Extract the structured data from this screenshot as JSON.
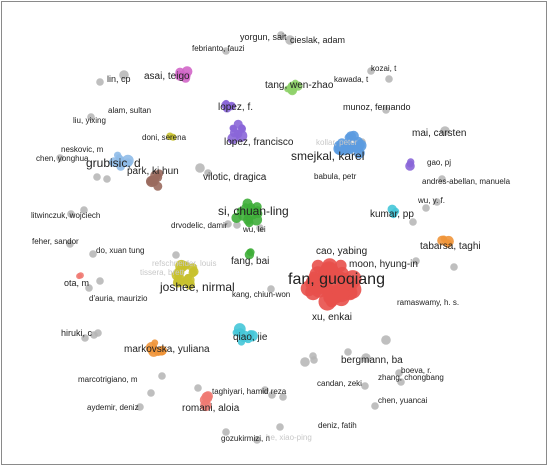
{
  "map": {
    "labels": [
      {
        "text": "fan, guoqiang",
        "size": "xl"
      },
      {
        "text": "cao, yabing",
        "size": "m"
      },
      {
        "text": "moon, hyung-in",
        "size": "m"
      },
      {
        "text": "xu, enkai",
        "size": "m"
      },
      {
        "text": "smejkal, karel",
        "size": "l"
      },
      {
        "text": "grubisic, d",
        "size": "l"
      },
      {
        "text": "si, chuan-ling",
        "size": "l"
      },
      {
        "text": "joshee, nirmal",
        "size": "l"
      },
      {
        "text": "lopez, francisco",
        "size": "m"
      },
      {
        "text": "tang, wen-zhao",
        "size": "m"
      },
      {
        "text": "asai, teigo",
        "size": "m"
      },
      {
        "text": "lopez, f.",
        "size": "m"
      },
      {
        "text": "park, ki hun",
        "size": "m"
      },
      {
        "text": "vilotic, dragica",
        "size": "m"
      },
      {
        "text": "fang, bai",
        "size": "m"
      },
      {
        "text": "qiao, jie",
        "size": "m"
      },
      {
        "text": "markovska, yuliana",
        "size": "m"
      },
      {
        "text": "bergmann, ba",
        "size": "m"
      },
      {
        "text": "romani, aloia",
        "size": "m"
      },
      {
        "text": "tabarsa, taghi",
        "size": "m"
      },
      {
        "text": "kumar, pp",
        "size": "m"
      },
      {
        "text": "mai, carsten",
        "size": "m"
      },
      {
        "text": "yorgun, sait",
        "size": "s"
      },
      {
        "text": "cieslak, adam",
        "size": "s"
      },
      {
        "text": "febrianto, fauzi",
        "size": "xs"
      },
      {
        "text": "kozai, t",
        "size": "xs"
      },
      {
        "text": "kawada, t",
        "size": "xs"
      },
      {
        "text": "lin, cp",
        "size": "s"
      },
      {
        "text": "alam, sultan",
        "size": "xs"
      },
      {
        "text": "liu, yixing",
        "size": "xs"
      },
      {
        "text": "munoz, fernando",
        "size": "s"
      },
      {
        "text": "doni, serena",
        "size": "xs"
      },
      {
        "text": "kollar, peter",
        "size": "faint"
      },
      {
        "text": "gao, pj",
        "size": "xs"
      },
      {
        "text": "neskovic, m",
        "size": "xs"
      },
      {
        "text": "babula, petr",
        "size": "xs"
      },
      {
        "text": "andres-abellan, manuela",
        "size": "xs"
      },
      {
        "text": "chen, yonghua",
        "size": "xs"
      },
      {
        "text": "wu, y. f.",
        "size": "xs"
      },
      {
        "text": "litwinczuk, wojciech",
        "size": "xs"
      },
      {
        "text": "drvodelic, damir",
        "size": "xs"
      },
      {
        "text": "wu, lei",
        "size": "xs"
      },
      {
        "text": "feher, sandor",
        "size": "xs"
      },
      {
        "text": "do, xuan tung",
        "size": "xs"
      },
      {
        "text": "tissera, brett",
        "size": "faint"
      },
      {
        "text": "refschneider, louis",
        "size": "faint"
      },
      {
        "text": "ota, m",
        "size": "s"
      },
      {
        "text": "d'auria, maurizio",
        "size": "xs"
      },
      {
        "text": "kang, chiun-won",
        "size": "xs"
      },
      {
        "text": "ramaswamy, h. s.",
        "size": "xs"
      },
      {
        "text": "hiruki, c",
        "size": "s"
      },
      {
        "text": "boeva, r.",
        "size": "xs"
      },
      {
        "text": "marcotrigiano, m",
        "size": "xs"
      },
      {
        "text": "taghiyari, hamid reza",
        "size": "xs"
      },
      {
        "text": "candan, zeki",
        "size": "xs"
      },
      {
        "text": "zhang, chongbang",
        "size": "xs"
      },
      {
        "text": "aydemir, deniz",
        "size": "xs"
      },
      {
        "text": "chen, yuancai",
        "size": "xs"
      },
      {
        "text": "deniz, fatih",
        "size": "xs"
      },
      {
        "text": "gozukirmizi, n",
        "size": "xs"
      },
      {
        "text": "he, xiao-ping",
        "size": "faint"
      }
    ],
    "colors": {
      "red": "#e8504b",
      "blue": "#5b9be0",
      "green": "#3fae3a",
      "purple": "#8a66d8",
      "yellow": "#c8c12e",
      "cyan": "#45c6d8",
      "orange": "#f0953a",
      "brown": "#9a6a5e",
      "pink": "#d266c8",
      "lightgreen": "#8fd16a",
      "gray": "#b4b4b4",
      "salmon": "#f07a72",
      "lightblue": "#8fbbe8"
    }
  }
}
